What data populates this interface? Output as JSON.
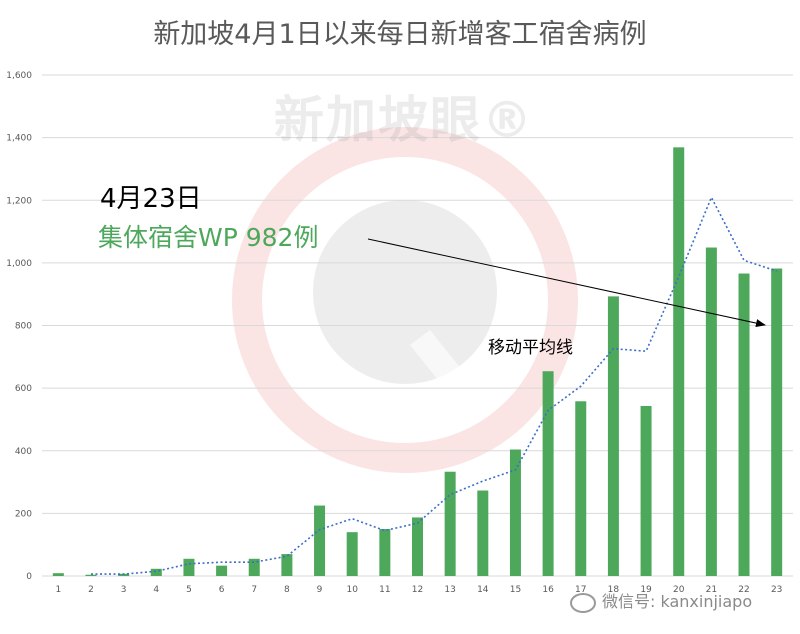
{
  "title": "新加坡4月1日以来每日新增客工宿舍病例",
  "annotations": {
    "date": "4月23日",
    "wp": "集体宿舍WP 982例",
    "moving_avg": "移动平均线"
  },
  "watermark": {
    "logo_text": "新加坡眼®",
    "wechat": "微信号: kanxinjiapo"
  },
  "colors": {
    "bar": "#4ea85c",
    "line": "#3b6fc4",
    "wp_text": "#4ea85c",
    "axis_text": "#595959",
    "grid": "#d9d9d9"
  },
  "chart_data": {
    "type": "bar",
    "categories": [
      "1",
      "2",
      "3",
      "4",
      "5",
      "6",
      "7",
      "8",
      "9",
      "10",
      "11",
      "12",
      "13",
      "14",
      "15",
      "16",
      "17",
      "18",
      "19",
      "20",
      "21",
      "22",
      "23"
    ],
    "y_ticks": [
      "0",
      "200",
      "400",
      "600",
      "800",
      "1,000",
      "1,200",
      "1,400",
      "1,600"
    ],
    "ylim": [
      0,
      1600
    ],
    "grid": true,
    "series": [
      {
        "values": [
          9,
          4,
          7,
          23,
          55,
          33,
          55,
          70,
          225,
          140,
          150,
          187,
          333,
          273,
          404,
          654,
          558,
          893,
          543,
          1369,
          1049,
          966,
          982
        ]
      },
      {
        "type": "line",
        "name": "移动平均线",
        "style": "dotted",
        "values": [
          null,
          6,
          6,
          15,
          39,
          44,
          44,
          63,
          148,
          183,
          145,
          169,
          260,
          303,
          339,
          529,
          606,
          726,
          718,
          956,
          1209,
          1008,
          974
        ]
      }
    ]
  }
}
